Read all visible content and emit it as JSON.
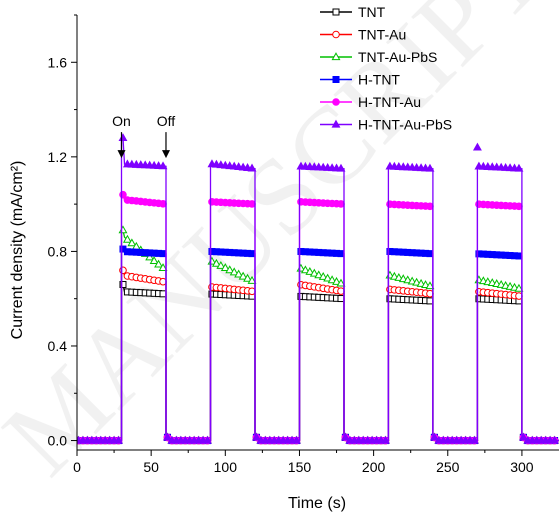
{
  "chart_data": {
    "type": "line",
    "title": "",
    "xlabel": "Time (s)",
    "ylabel": "Current density (mA/cm²)",
    "xlim": [
      0,
      325
    ],
    "ylim": [
      -0.04,
      1.8
    ],
    "x_ticks": [
      0,
      50,
      100,
      150,
      200,
      250,
      300
    ],
    "y_ticks": [
      0.0,
      0.4,
      0.8,
      1.2,
      1.6
    ],
    "y_tick_labels": [
      "0.0",
      "0.4",
      "0.8",
      "1.2",
      "1.6"
    ],
    "grid": false,
    "legend_position": "top-right",
    "light_on_intervals": [
      [
        30,
        60
      ],
      [
        90,
        120
      ],
      [
        150,
        180
      ],
      [
        210,
        240
      ],
      [
        270,
        300
      ]
    ],
    "annotations": [
      {
        "text": "On",
        "x": 30,
        "y": 1.33
      },
      {
        "text": "Off",
        "x": 60,
        "y": 1.33
      }
    ],
    "series": [
      {
        "name": "TNT",
        "color": "#000000",
        "marker": "open-square",
        "dark": 0.0,
        "on_levels": [
          [
            0.63,
            0.62
          ],
          [
            0.62,
            0.61
          ],
          [
            0.61,
            0.6
          ],
          [
            0.6,
            0.59
          ],
          [
            0.6,
            0.59
          ]
        ],
        "spike": 0.66
      },
      {
        "name": "TNT-Au",
        "color": "#ff0000",
        "marker": "open-circle",
        "dark": 0.0,
        "on_levels": [
          [
            0.7,
            0.67
          ],
          [
            0.65,
            0.63
          ],
          [
            0.66,
            0.63
          ],
          [
            0.64,
            0.62
          ],
          [
            0.63,
            0.61
          ]
        ],
        "spike": 0.72
      },
      {
        "name": "TNT-Au-PbS",
        "color": "#00c000",
        "marker": "open-triangle",
        "dark": 0.0,
        "on_levels": [
          [
            0.87,
            0.72
          ],
          [
            0.76,
            0.67
          ],
          [
            0.73,
            0.66
          ],
          [
            0.7,
            0.65
          ],
          [
            0.68,
            0.64
          ]
        ],
        "spike": 0.89
      },
      {
        "name": "H-TNT",
        "color": "#0000ff",
        "marker": "filled-square",
        "dark": 0.0,
        "on_levels": [
          [
            0.8,
            0.79
          ],
          [
            0.8,
            0.79
          ],
          [
            0.8,
            0.79
          ],
          [
            0.8,
            0.79
          ],
          [
            0.79,
            0.78
          ]
        ],
        "spike": 0.81
      },
      {
        "name": "H-TNT-Au",
        "color": "#ff00ff",
        "marker": "filled-circle",
        "dark": 0.0,
        "on_levels": [
          [
            1.02,
            1.0
          ],
          [
            1.01,
            1.0
          ],
          [
            1.01,
            1.0
          ],
          [
            1.0,
            0.99
          ],
          [
            1.0,
            0.99
          ]
        ],
        "spike": 1.04
      },
      {
        "name": "H-TNT-Au-PbS",
        "color": "#7f00ff",
        "marker": "filled-triangle",
        "dark": 0.0,
        "on_levels": [
          [
            1.17,
            1.16
          ],
          [
            1.17,
            1.15
          ],
          [
            1.16,
            1.15
          ],
          [
            1.16,
            1.15
          ],
          [
            1.16,
            1.15
          ]
        ],
        "spike": 1.28
      }
    ]
  },
  "watermark": "MANUSCRIPT"
}
